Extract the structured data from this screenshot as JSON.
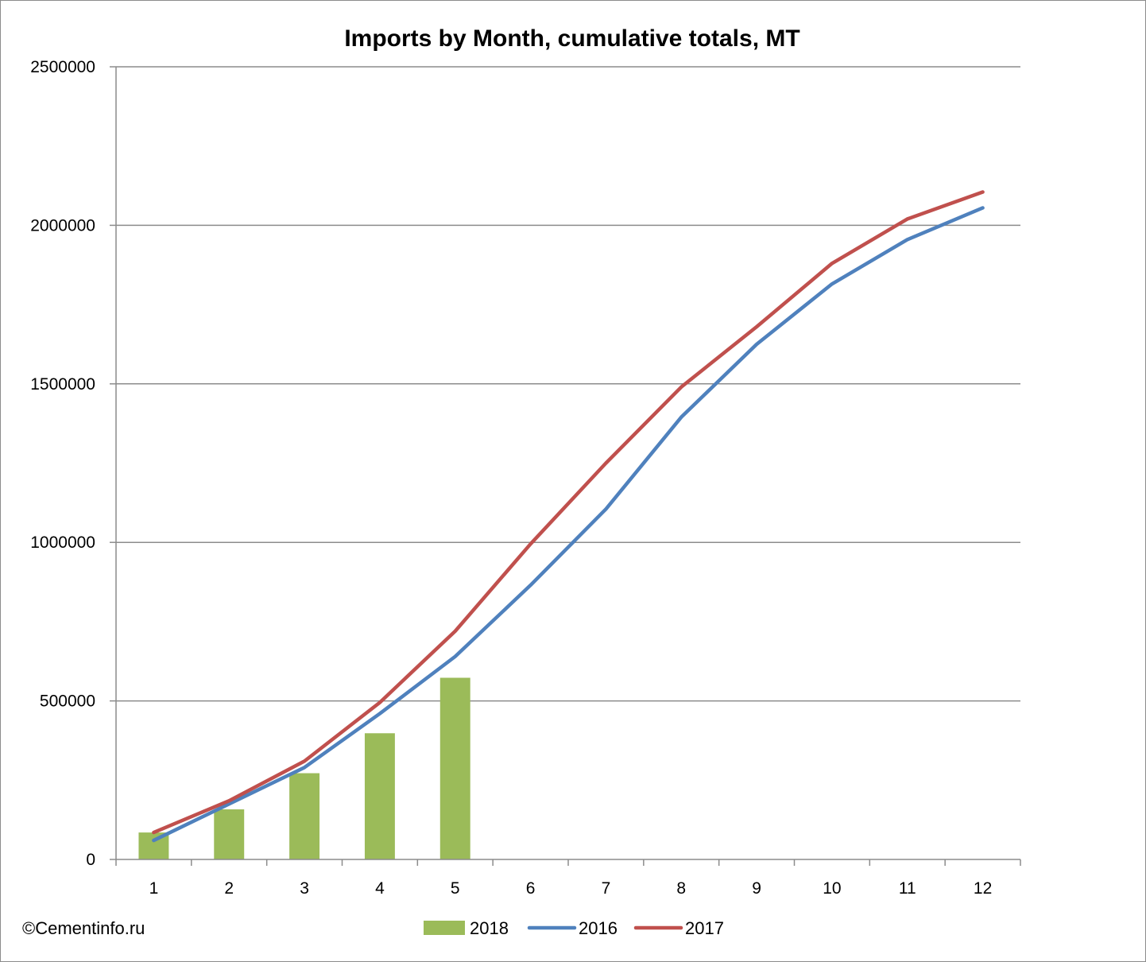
{
  "chart_data": {
    "type": "bar",
    "title": "Imports by Month, cumulative totals, MT",
    "xlabel": "",
    "ylabel": "",
    "categories": [
      "1",
      "2",
      "3",
      "4",
      "5",
      "6",
      "7",
      "8",
      "9",
      "10",
      "11",
      "12"
    ],
    "ylim": [
      0,
      2500000
    ],
    "yticks": [
      "0",
      "500000",
      "1000000",
      "1500000",
      "2000000",
      "2500000"
    ],
    "grid": true,
    "legend_position": "bottom",
    "series": [
      {
        "name": "2018",
        "type": "bar",
        "color": "#9bbb59",
        "values": [
          85000,
          158000,
          272000,
          398000,
          573000,
          null,
          null,
          null,
          null,
          null,
          null,
          null
        ]
      },
      {
        "name": "2016",
        "type": "line",
        "color": "#4f81bd",
        "values": [
          60000,
          175000,
          290000,
          460000,
          640000,
          865000,
          1105000,
          1395000,
          1625000,
          1815000,
          1955000,
          2055000
        ]
      },
      {
        "name": "2017",
        "type": "line",
        "color": "#c0504d",
        "values": [
          85000,
          185000,
          310000,
          495000,
          720000,
          995000,
          1250000,
          1490000,
          1680000,
          1880000,
          2020000,
          2105000
        ]
      }
    ]
  },
  "credit": "©Cementinfo.ru"
}
